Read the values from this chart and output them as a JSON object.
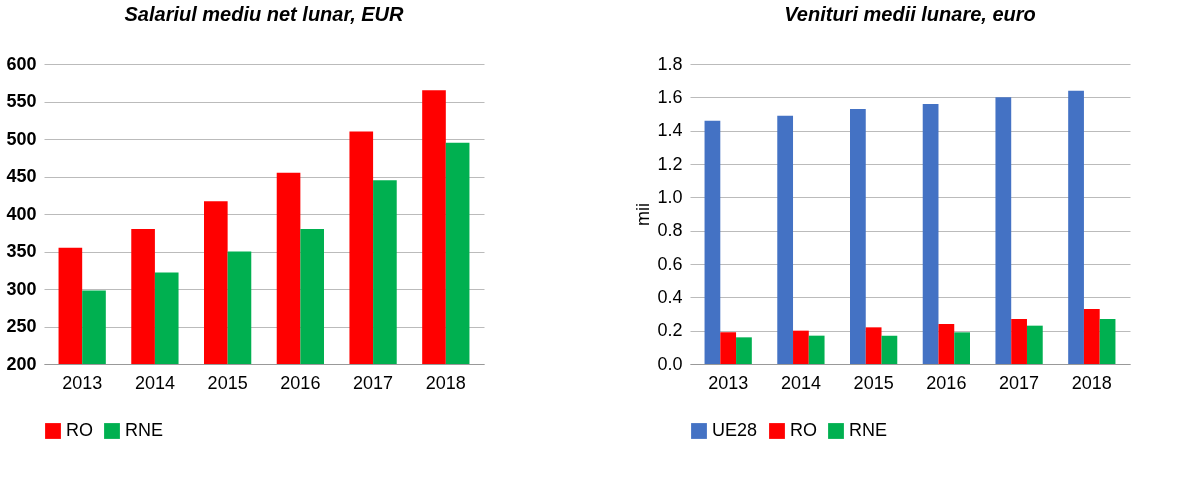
{
  "chart_data": [
    {
      "type": "bar",
      "title": "Salariul mediu net lunar, EUR",
      "categories": [
        "2013",
        "2014",
        "2015",
        "2016",
        "2017",
        "2018"
      ],
      "series": [
        {
          "name": "RO",
          "color": "#ff0000",
          "values": [
            355,
            380,
            417,
            455,
            510,
            565
          ]
        },
        {
          "name": "RNE",
          "color": "#00b050",
          "values": [
            298,
            322,
            350,
            380,
            445,
            495
          ]
        }
      ],
      "ylim": [
        200,
        600
      ],
      "yticks": [
        200,
        250,
        300,
        350,
        400,
        450,
        500,
        550,
        600
      ],
      "grid": "y",
      "legend": "bottom"
    },
    {
      "type": "bar",
      "title": "Venituri medii lunare, euro",
      "ylabel": "mii",
      "categories": [
        "2013",
        "2014",
        "2015",
        "2016",
        "2017",
        "2018"
      ],
      "series": [
        {
          "name": "UE28",
          "color": "#4472c4",
          "values": [
            1.46,
            1.49,
            1.53,
            1.56,
            1.6,
            1.64
          ]
        },
        {
          "name": "RO",
          "color": "#ff0000",
          "values": [
            0.19,
            0.2,
            0.22,
            0.24,
            0.27,
            0.33
          ]
        },
        {
          "name": "RNE",
          "color": "#00b050",
          "values": [
            0.16,
            0.17,
            0.17,
            0.19,
            0.23,
            0.27
          ]
        }
      ],
      "ylim": [
        0,
        1.8
      ],
      "yticks": [
        {
          "value": 0,
          "label": "0.0"
        },
        {
          "value": 0.2,
          "label": "0.2"
        },
        {
          "value": 0.4,
          "label": "0.4"
        },
        {
          "value": 0.6,
          "label": "0.6"
        },
        {
          "value": 0.8,
          "label": "0.8"
        },
        {
          "value": 1,
          "label": "1.0"
        },
        {
          "value": 1.2,
          "label": "1.2"
        },
        {
          "value": 1.4,
          "label": "1.4"
        },
        {
          "value": 1.6,
          "label": "1.6"
        },
        {
          "value": 1.8,
          "label": "1.8"
        }
      ],
      "grid": "y",
      "legend": "bottom"
    }
  ]
}
